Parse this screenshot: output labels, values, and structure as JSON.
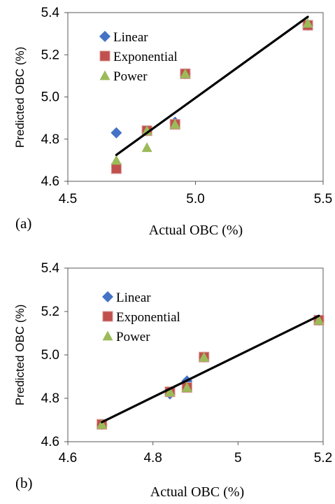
{
  "colors": {
    "linear": "#4472C4",
    "exponential": "#C0504D",
    "exponential_border": "#D99694",
    "power": "#9BBB59",
    "fit_line": "#000000"
  },
  "chart_data": [
    {
      "type": "scatter",
      "panel_label": "(a)",
      "xlabel": "Actual OBC (%)",
      "ylabel": "Predicted OBC (%)",
      "xlim": [
        4.5,
        5.5
      ],
      "ylim": [
        4.6,
        5.4
      ],
      "x_ticks": [
        "4.5",
        "5.0",
        "5.5"
      ],
      "y_ticks": [
        "4.6",
        "4.8",
        "5.0",
        "5.2",
        "5.4"
      ],
      "legend_position": "top-left",
      "series": [
        {
          "name": "Linear",
          "marker": "diamond",
          "x": [
            4.69,
            4.81,
            4.92,
            4.96,
            5.44
          ],
          "y": [
            4.83,
            4.84,
            4.88,
            5.11,
            5.34
          ]
        },
        {
          "name": "Exponential",
          "marker": "square",
          "x": [
            4.69,
            4.81,
            4.92,
            4.96,
            5.44
          ],
          "y": [
            4.66,
            4.84,
            4.87,
            5.11,
            5.34
          ]
        },
        {
          "name": "Power",
          "marker": "triangle",
          "x": [
            4.69,
            4.81,
            4.81,
            4.92,
            4.96,
            5.44
          ],
          "y": [
            4.7,
            4.84,
            4.76,
            4.87,
            5.11,
            5.35
          ]
        }
      ],
      "fit_line": {
        "x": [
          4.69,
          5.44
        ],
        "y": [
          4.725,
          5.38
        ]
      }
    },
    {
      "type": "scatter",
      "panel_label": "(b)",
      "xlabel": "Actual OBC (%)",
      "ylabel": "Predicted OBC (%)",
      "xlim": [
        4.6,
        5.2
      ],
      "ylim": [
        4.6,
        5.4
      ],
      "x_ticks": [
        "4.6",
        "4.8",
        "5",
        "5.2"
      ],
      "y_ticks": [
        "4.6",
        "4.8",
        "5.0",
        "5.2",
        "5.4"
      ],
      "legend_position": "top-left",
      "series": [
        {
          "name": "Linear",
          "marker": "diamond",
          "x": [
            4.68,
            4.84,
            4.88,
            4.92,
            5.19
          ],
          "y": [
            4.68,
            4.82,
            4.88,
            4.99,
            5.16
          ]
        },
        {
          "name": "Exponential",
          "marker": "square",
          "x": [
            4.68,
            4.84,
            4.88,
            4.92,
            5.19
          ],
          "y": [
            4.68,
            4.83,
            4.85,
            4.99,
            5.16
          ]
        },
        {
          "name": "Power",
          "marker": "triangle",
          "x": [
            4.68,
            4.84,
            4.88,
            4.92,
            5.19
          ],
          "y": [
            4.68,
            4.83,
            4.85,
            4.99,
            5.16
          ]
        }
      ],
      "fit_line": {
        "x": [
          4.68,
          5.19
        ],
        "y": [
          4.69,
          5.18
        ]
      }
    }
  ]
}
